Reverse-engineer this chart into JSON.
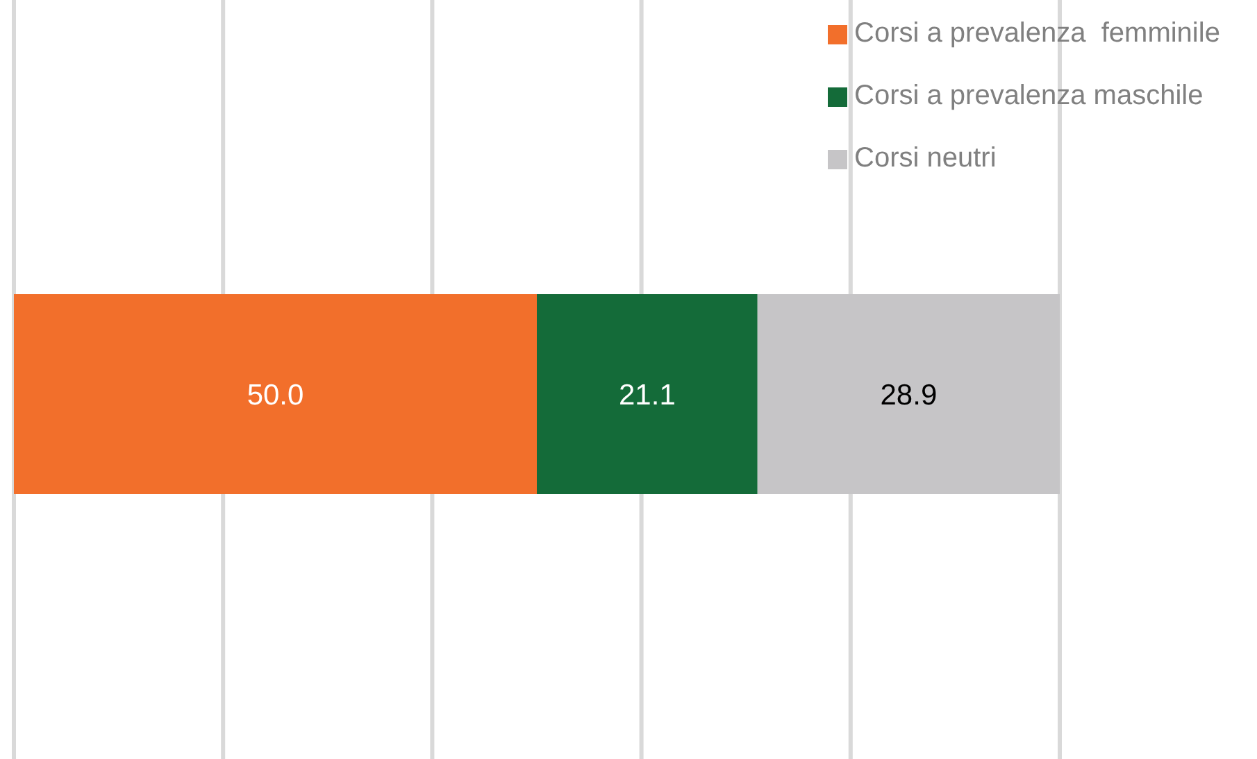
{
  "chart_data": {
    "type": "bar",
    "orientation": "horizontal",
    "stacked": true,
    "categories": [
      null
    ],
    "series": [
      {
        "name": "Corsi a prevalenza  femminile",
        "color": "#f26f2b",
        "values": [
          50.0
        ],
        "value_labels": [
          "50.0"
        ]
      },
      {
        "name": "Corsi a prevalenza maschile",
        "color": "#146b39",
        "values": [
          21.1
        ],
        "value_labels": [
          "21.1"
        ]
      },
      {
        "name": "Corsi neutri",
        "color": "#c6c5c7",
        "values": [
          28.9
        ],
        "value_labels": [
          "28.9"
        ]
      }
    ],
    "xlim": [
      0,
      100
    ],
    "xticks": [
      {
        "value": 0,
        "label": null
      },
      {
        "value": 20,
        "label": null
      },
      {
        "value": 40,
        "label": null
      },
      {
        "value": 60,
        "label": null
      },
      {
        "value": 80,
        "label": null
      },
      {
        "value": 100,
        "label": null
      }
    ],
    "grid": "x",
    "tick_labels": false,
    "legend": "top right"
  }
}
